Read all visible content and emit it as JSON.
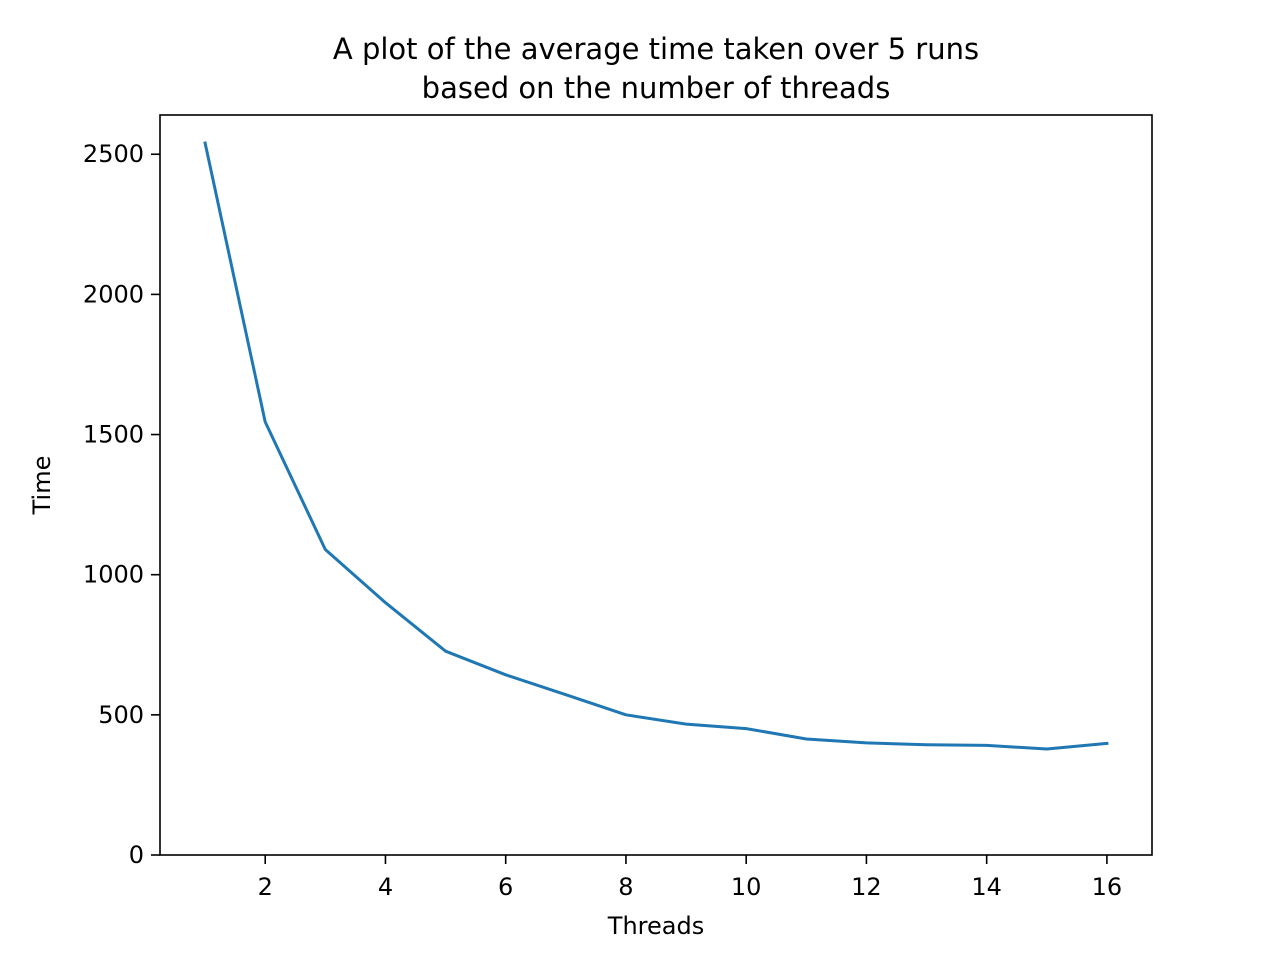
{
  "chart_data": {
    "type": "line",
    "title_lines": [
      "A plot of the average time taken over 5 runs",
      "based on the number of threads"
    ],
    "xlabel": "Threads",
    "ylabel": "Time",
    "xlim": [
      0.25,
      16.75
    ],
    "ylim": [
      0,
      2640
    ],
    "xticks": [
      2,
      4,
      6,
      8,
      10,
      12,
      14,
      16
    ],
    "xtick_labels": [
      "2",
      "4",
      "6",
      "8",
      "10",
      "12",
      "14",
      "16"
    ],
    "yticks": [
      0,
      500,
      1000,
      1500,
      2000,
      2500
    ],
    "ytick_labels": [
      "0",
      "500",
      "1000",
      "1500",
      "2000",
      "2500"
    ],
    "grid": false,
    "series": [
      {
        "color": "#1f77b4",
        "x": [
          1,
          2,
          3,
          4,
          5,
          6,
          7,
          8,
          9,
          10,
          11,
          12,
          13,
          14,
          15,
          16
        ],
        "y": [
          2540,
          1545,
          1090,
          900,
          727,
          643,
          572,
          500,
          467,
          451,
          414,
          400,
          393,
          391,
          378,
          398
        ]
      }
    ]
  }
}
